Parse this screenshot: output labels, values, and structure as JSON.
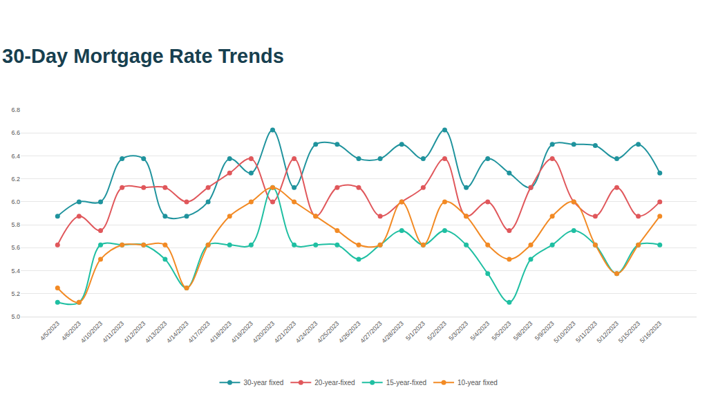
{
  "chart_data": {
    "type": "line",
    "title": "30-Day Mortgage Rate Trends",
    "categories": [
      "4/5/2023",
      "4/6/2023",
      "4/10/2023",
      "4/11/2023",
      "4/12/2023",
      "4/13/2023",
      "4/14/2023",
      "4/17/2023",
      "4/18/2023",
      "4/19/2023",
      "4/20/2023",
      "4/21/2023",
      "4/24/2023",
      "4/25/2023",
      "4/26/2023",
      "4/27/2023",
      "4/28/2023",
      "5/1/2023",
      "5/2/2023",
      "5/3/2023",
      "5/4/2023",
      "5/5/2023",
      "5/8/2023",
      "5/9/2023",
      "5/10/2023",
      "5/11/2023",
      "5/12/2023",
      "5/15/2023",
      "5/16/2023"
    ],
    "series": [
      {
        "name": "30-year fixed",
        "color": "#1f939d",
        "values": [
          5.875,
          6.0,
          6.0,
          6.375,
          6.375,
          5.875,
          5.875,
          6.0,
          6.375,
          6.25,
          6.625,
          6.125,
          6.5,
          6.5,
          6.375,
          6.375,
          6.5,
          6.375,
          6.625,
          6.125,
          6.375,
          6.25,
          6.125,
          6.5,
          6.5,
          6.49,
          6.375,
          6.5,
          6.25
        ]
      },
      {
        "name": "20-year-fixed",
        "color": "#e0575b",
        "values": [
          5.625,
          5.875,
          5.75,
          6.125,
          6.125,
          6.125,
          6.0,
          6.125,
          6.25,
          6.375,
          6.0,
          6.375,
          5.875,
          6.125,
          6.125,
          5.875,
          6.0,
          6.125,
          6.375,
          5.875,
          6.0,
          5.75,
          6.125,
          6.375,
          6.0,
          5.875,
          6.125,
          5.875,
          6.0
        ]
      },
      {
        "name": "15-year-fixed",
        "color": "#1fbfa2",
        "values": [
          5.125,
          5.125,
          5.625,
          5.625,
          5.625,
          5.5,
          5.25,
          5.625,
          5.625,
          5.625,
          6.125,
          5.625,
          5.625,
          5.625,
          5.5,
          5.625,
          5.75,
          5.625,
          5.75,
          5.625,
          5.375,
          5.125,
          5.5,
          5.625,
          5.75,
          5.625,
          5.375,
          5.625,
          5.625
        ]
      },
      {
        "name": "10-year fixed",
        "color": "#f28a24",
        "values": [
          5.25,
          5.125,
          5.5,
          5.625,
          5.625,
          5.625,
          5.25,
          5.625,
          5.875,
          6.0,
          6.125,
          6.0,
          5.875,
          5.75,
          5.625,
          5.625,
          6.0,
          5.625,
          6.0,
          5.875,
          5.625,
          5.5,
          5.625,
          5.875,
          6.0,
          5.625,
          5.375,
          5.625,
          5.875
        ]
      }
    ],
    "ylim": [
      5.0,
      6.8
    ],
    "yticks": [
      {
        "value": 5.0,
        "label": "5.0"
      },
      5.2,
      5.4,
      5.6,
      5.8,
      {
        "value": 6.0,
        "label": "6.0"
      },
      6.2,
      6.4,
      6.6,
      6.8
    ],
    "grid": true,
    "legend": "bottom",
    "marker": "circle",
    "line_style": "spline"
  }
}
